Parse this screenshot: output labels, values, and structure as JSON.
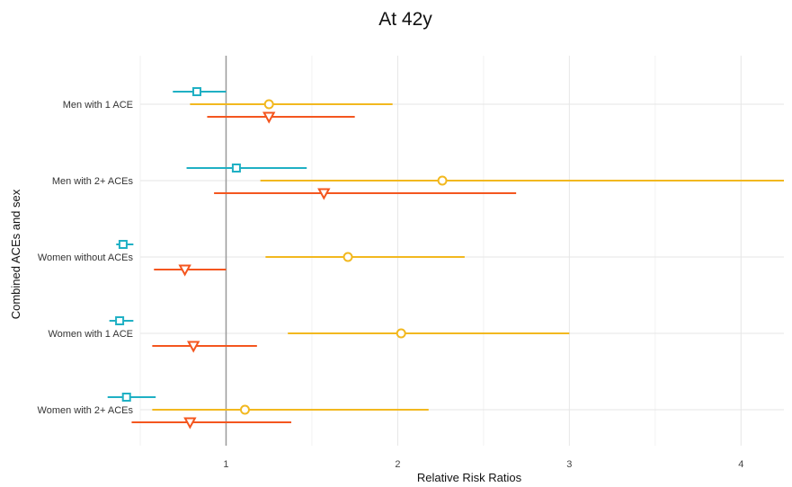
{
  "chart_data": {
    "type": "scatter",
    "subtype": "forest-plot",
    "title": "At 42y",
    "xlabel": "Relative Risk Ratios",
    "ylabel": "Combined ACEs and sex",
    "xlim": [
      0.5,
      4.25
    ],
    "x_ticks": [
      1,
      2,
      3,
      4
    ],
    "reference_line": 1,
    "grid": true,
    "legend": "none",
    "categories": [
      "Men with 1 ACE",
      "Men with 2+ ACEs",
      "Women without ACEs",
      "Women with 1 ACE",
      "Women with 2+ ACEs"
    ],
    "series": [
      {
        "color": "#1fb0c4",
        "marker": "square",
        "points": [
          {
            "category": "Men with 1 ACE",
            "estimate": 0.83,
            "lower": 0.69,
            "upper": 1.0
          },
          {
            "category": "Men with 2+ ACEs",
            "estimate": 1.06,
            "lower": 0.77,
            "upper": 1.47
          },
          {
            "category": "Women without ACEs",
            "estimate": 0.4,
            "lower": 0.36,
            "upper": 0.46
          },
          {
            "category": "Women with 1 ACE",
            "estimate": 0.38,
            "lower": 0.32,
            "upper": 0.46
          },
          {
            "category": "Women with 2+ ACEs",
            "estimate": 0.42,
            "lower": 0.31,
            "upper": 0.59
          }
        ]
      },
      {
        "color": "#f2b81f",
        "marker": "circle",
        "points": [
          {
            "category": "Men with 1 ACE",
            "estimate": 1.25,
            "lower": 0.79,
            "upper": 1.97
          },
          {
            "category": "Men with 2+ ACEs",
            "estimate": 2.26,
            "lower": 1.2,
            "upper": 4.25
          },
          {
            "category": "Women without ACEs",
            "estimate": 1.71,
            "lower": 1.23,
            "upper": 2.39
          },
          {
            "category": "Women with 1 ACE",
            "estimate": 2.02,
            "lower": 1.36,
            "upper": 3.0
          },
          {
            "category": "Women with 2+ ACEs",
            "estimate": 1.11,
            "lower": 0.57,
            "upper": 2.18
          }
        ]
      },
      {
        "color": "#f4561f",
        "marker": "triangle-down",
        "points": [
          {
            "category": "Men with 1 ACE",
            "estimate": 1.25,
            "lower": 0.89,
            "upper": 1.75
          },
          {
            "category": "Men with 2+ ACEs",
            "estimate": 1.57,
            "lower": 0.93,
            "upper": 2.69
          },
          {
            "category": "Women without ACEs",
            "estimate": 0.76,
            "lower": 0.58,
            "upper": 1.0
          },
          {
            "category": "Women with 1 ACE",
            "estimate": 0.81,
            "lower": 0.57,
            "upper": 1.18
          },
          {
            "category": "Women with 2+ ACEs",
            "estimate": 0.79,
            "lower": 0.45,
            "upper": 1.38
          }
        ]
      }
    ]
  }
}
